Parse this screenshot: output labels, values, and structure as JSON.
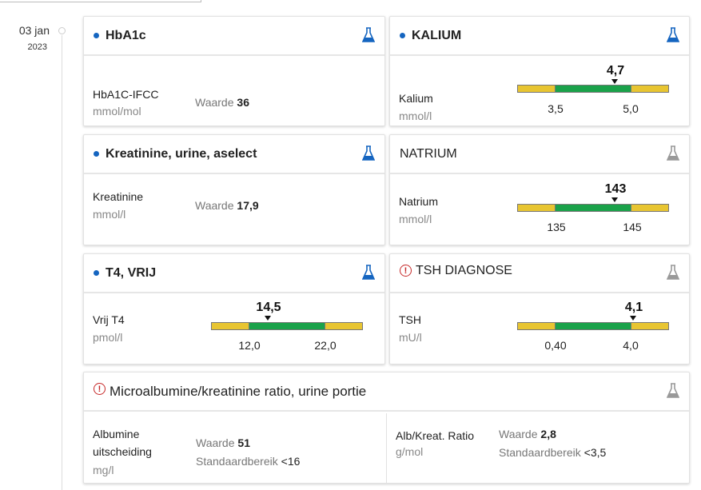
{
  "date": {
    "day": "03 jan",
    "year": "2023"
  },
  "colors": {
    "accent": "#1565c0",
    "alert": "#c62828",
    "low_high": "#e8c531",
    "normal": "#1aa24a"
  },
  "cards": {
    "hba1c": {
      "title": "HbA1c",
      "icon": "flask-blue-icon",
      "name": "HbA1C-IFCC",
      "unit": "mmol/mol",
      "waarde_label": "Waarde",
      "waarde": "36"
    },
    "kalium": {
      "title": "KALIUM",
      "icon": "flask-blue-icon",
      "name": "Kalium",
      "unit": "mmol/l",
      "value": "4,7",
      "low": "3,5",
      "high": "5,0"
    },
    "kreatinine": {
      "title": "Kreatinine, urine, aselect",
      "icon": "flask-blue-icon",
      "name": "Kreatinine",
      "unit": "mmol/l",
      "waarde_label": "Waarde",
      "waarde": "17,9"
    },
    "natrium": {
      "title": "NATRIUM",
      "icon": "flask-gray-icon",
      "name": "Natrium",
      "unit": "mmol/l",
      "value": "143",
      "low": "135",
      "high": "145"
    },
    "t4": {
      "title": "T4, VRIJ",
      "icon": "flask-blue-icon",
      "name": "Vrij T4",
      "unit": "pmol/l",
      "value": "14,5",
      "low": "12,0",
      "high": "22,0"
    },
    "tsh": {
      "title": "TSH DIAGNOSE",
      "icon": "flask-gray-icon",
      "name": "TSH",
      "unit": "mU/l",
      "value": "4,1",
      "low": "0,40",
      "high": "4,0"
    },
    "micro": {
      "title": "Microalbumine/kreatinine ratio, urine portie",
      "icon": "flask-gray-icon",
      "left": {
        "name_line1": "Albumine",
        "name_line2": "uitscheiding",
        "unit": "mg/l",
        "waarde_label": "Waarde",
        "waarde": "51",
        "range_label": "Standaardbereik",
        "range": "<16"
      },
      "right": {
        "name": "Alb/Kreat. Ratio",
        "unit": "g/mol",
        "waarde_label": "Waarde",
        "waarde": "2,8",
        "range_label": "Standaardbereik",
        "range": "<3,5"
      }
    }
  }
}
